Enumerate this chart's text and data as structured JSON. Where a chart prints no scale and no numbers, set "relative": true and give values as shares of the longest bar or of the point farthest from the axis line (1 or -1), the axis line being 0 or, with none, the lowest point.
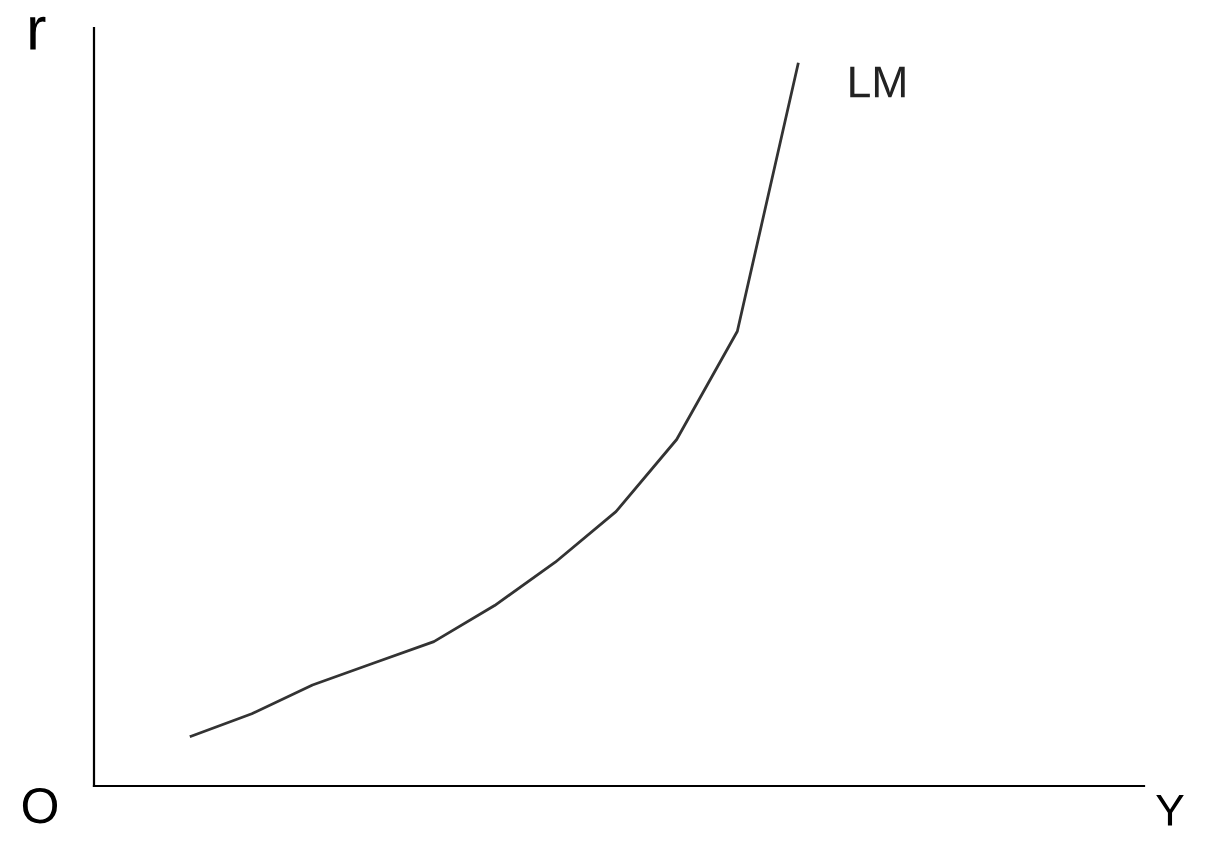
{
  "chart_data": {
    "type": "line",
    "relative": true,
    "ylabel": "r",
    "annotations": [
      "O",
      "Y"
    ],
    "categories": [
      null,
      null,
      null,
      null,
      null,
      null,
      null,
      null,
      null,
      null,
      null
    ],
    "series": [
      {
        "name": "LM",
        "color": "#333333",
        "values": [
          0.069,
          0.1,
          0.14,
          0.17,
          0.2,
          0.25,
          0.31,
          0.38,
          0.48,
          0.63,
          1
        ]
      }
    ],
    "legend": false,
    "grid": false,
    "marker": "none",
    "line_style": "solid"
  }
}
